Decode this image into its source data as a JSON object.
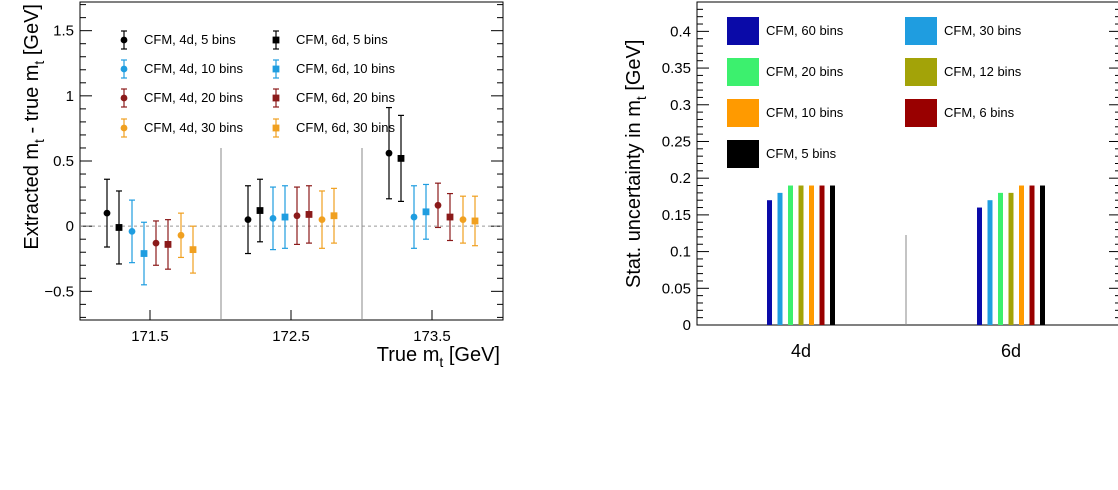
{
  "chart_data": [
    {
      "type": "scatter",
      "xlabel_main": "True m",
      "xlabel_sub": "t",
      "xlabel_unit": " [GeV]",
      "ylabel_main": "Extracted m",
      "ylabel_sub": "t",
      "ylabel_mid": " - true m",
      "ylabel_sub2": "t",
      "ylabel_unit": " [GeV]",
      "categories": [
        "171.5",
        "172.5",
        "173.5"
      ],
      "ylim": [
        -0.72,
        1.72
      ],
      "yticks": [
        -0.5,
        0,
        0.5,
        1,
        1.5
      ],
      "ytick_labels": [
        "−0.5",
        "0",
        "0.5",
        "1",
        "1.5"
      ],
      "reference_line": 0,
      "series": [
        {
          "name": "CFM, 4d, 5 bins",
          "marker": "circle",
          "color": "#000000",
          "values": [
            0.1,
            0.05,
            0.56
          ],
          "err": [
            0.26,
            0.26,
            0.35
          ]
        },
        {
          "name": "CFM, 6d, 5 bins",
          "marker": "square",
          "color": "#000000",
          "values": [
            -0.01,
            0.12,
            0.52
          ],
          "err": [
            0.28,
            0.24,
            0.33
          ]
        },
        {
          "name": "CFM, 4d, 10 bins",
          "marker": "circle",
          "color": "#1f9de0",
          "values": [
            -0.04,
            0.06,
            0.07
          ],
          "err": [
            0.24,
            0.24,
            0.24
          ]
        },
        {
          "name": "CFM, 6d, 10 bins",
          "marker": "square",
          "color": "#1f9de0",
          "values": [
            -0.21,
            0.07,
            0.11
          ],
          "err": [
            0.24,
            0.24,
            0.21
          ]
        },
        {
          "name": "CFM, 4d, 20 bins",
          "marker": "circle",
          "color": "#8b1a1a",
          "values": [
            -0.13,
            0.08,
            0.16
          ],
          "err": [
            0.17,
            0.22,
            0.17
          ]
        },
        {
          "name": "CFM, 6d, 20 bins",
          "marker": "square",
          "color": "#8b1a1a",
          "values": [
            -0.14,
            0.09,
            0.07
          ],
          "err": [
            0.19,
            0.22,
            0.18
          ]
        },
        {
          "name": "CFM, 4d, 30 bins",
          "marker": "circle",
          "color": "#f0a020",
          "values": [
            -0.07,
            0.05,
            0.05
          ],
          "err": [
            0.17,
            0.22,
            0.18
          ]
        },
        {
          "name": "CFM, 6d, 30 bins",
          "marker": "square",
          "color": "#f0a020",
          "values": [
            -0.18,
            0.08,
            0.04
          ],
          "err": [
            0.18,
            0.21,
            0.19
          ]
        }
      ]
    },
    {
      "type": "bar",
      "ylabel_main": "Stat. uncertainty in m",
      "ylabel_sub": "t",
      "ylabel_unit": " [GeV]",
      "categories": [
        "4d",
        "6d"
      ],
      "ylim": [
        0,
        0.44
      ],
      "yticks": [
        0,
        0.05,
        0.1,
        0.15,
        0.2,
        0.25,
        0.3,
        0.35,
        0.4
      ],
      "ytick_labels": [
        "0",
        "0.05",
        "0.1",
        "0.15",
        "0.2",
        "0.25",
        "0.3",
        "0.35",
        "0.4"
      ],
      "series": [
        {
          "name": "CFM, 60 bins",
          "color": "#0a0aa8",
          "values": [
            0.17,
            0.16
          ]
        },
        {
          "name": "CFM, 30 bins",
          "color": "#1f9de0",
          "values": [
            0.18,
            0.17
          ]
        },
        {
          "name": "CFM, 20 bins",
          "color": "#3cf06e",
          "values": [
            0.19,
            0.18
          ]
        },
        {
          "name": "CFM, 12 bins",
          "color": "#a3a308",
          "values": [
            0.19,
            0.18
          ]
        },
        {
          "name": "CFM, 10 bins",
          "color": "#ff9a00",
          "values": [
            0.19,
            0.19
          ]
        },
        {
          "name": "CFM, 6 bins",
          "color": "#990000",
          "values": [
            0.19,
            0.19
          ]
        },
        {
          "name": "CFM, 5 bins",
          "color": "#000000",
          "values": [
            0.19,
            0.19
          ]
        }
      ]
    }
  ]
}
